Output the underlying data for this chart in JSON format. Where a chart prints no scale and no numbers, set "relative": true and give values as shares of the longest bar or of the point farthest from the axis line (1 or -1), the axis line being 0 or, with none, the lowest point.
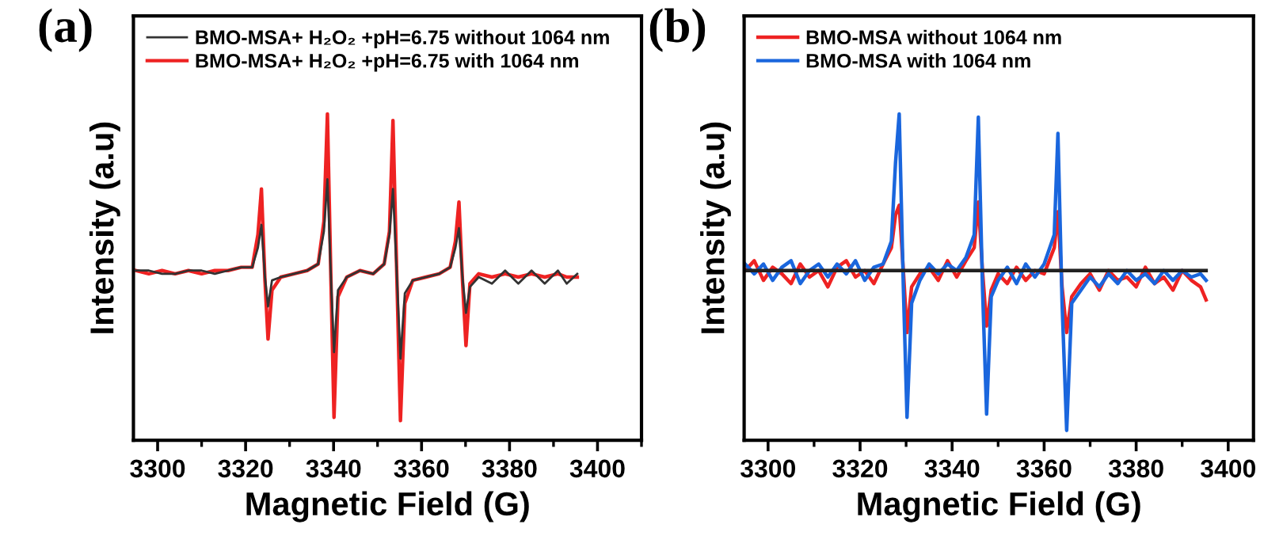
{
  "chart_data": [
    {
      "type": "line",
      "relative": true,
      "annotations": [
        "(a)"
      ],
      "xlabel": "Magnetic Field (G)",
      "ylabel": "Intensity (a.u)",
      "legend": "top left",
      "grid": false,
      "tick_labels": "x",
      "xlim": [
        3294.5,
        3410
      ],
      "xticks": [
        3300,
        {
          "value": 3310,
          "label": null
        },
        3320,
        {
          "value": 3330,
          "label": null
        },
        3340,
        {
          "value": 3350,
          "label": null
        },
        3360,
        {
          "value": 3370,
          "label": null
        },
        3380,
        {
          "value": 3390,
          "label": null
        },
        3400,
        {
          "value": 3410,
          "label": null
        }
      ],
      "x": [
        3295,
        3298,
        3301,
        3304,
        3307,
        3310,
        3313,
        3316,
        3319,
        3321.5,
        3322.8,
        3323.6,
        3324.4,
        3325.1,
        3326,
        3328,
        3331,
        3334,
        3336.5,
        3337.8,
        3338.6,
        3339.4,
        3340.1,
        3341,
        3343,
        3346,
        3349,
        3351.5,
        3352.7,
        3353.5,
        3354.4,
        3355.2,
        3356.2,
        3358,
        3361,
        3364,
        3366.5,
        3367.7,
        3368.5,
        3369.3,
        3370.1,
        3371,
        3373,
        3376,
        3379,
        3382,
        3385,
        3388,
        3391,
        3393,
        3395.4
      ],
      "series": [
        {
          "name": "BMO-MSA+ H₂O₂ +pH=6.75 without 1064 nm",
          "color": "#333333",
          "values": [
            0.52,
            0.52,
            0.51,
            0.51,
            0.52,
            0.52,
            0.51,
            0.52,
            0.53,
            0.53,
            0.59,
            0.66,
            0.5,
            0.41,
            0.49,
            0.5,
            0.51,
            0.52,
            0.54,
            0.64,
            0.8,
            0.5,
            0.27,
            0.46,
            0.5,
            0.52,
            0.51,
            0.54,
            0.63,
            0.77,
            0.5,
            0.25,
            0.45,
            0.49,
            0.5,
            0.51,
            0.53,
            0.59,
            0.65,
            0.5,
            0.39,
            0.47,
            0.5,
            0.48,
            0.52,
            0.48,
            0.52,
            0.48,
            0.52,
            0.48,
            0.51
          ]
        },
        {
          "name": "BMO-MSA+ H₂O₂ +pH=6.75 with 1064 nm",
          "color": "#ee2222",
          "values": [
            0.52,
            0.51,
            0.52,
            0.51,
            0.52,
            0.51,
            0.52,
            0.52,
            0.53,
            0.53,
            0.63,
            0.77,
            0.49,
            0.31,
            0.46,
            0.5,
            0.51,
            0.52,
            0.54,
            0.67,
            1.0,
            0.49,
            0.07,
            0.44,
            0.5,
            0.52,
            0.51,
            0.54,
            0.64,
            0.98,
            0.49,
            0.06,
            0.42,
            0.49,
            0.5,
            0.51,
            0.53,
            0.61,
            0.73,
            0.49,
            0.29,
            0.48,
            0.51,
            0.5,
            0.51,
            0.5,
            0.51,
            0.5,
            0.51,
            0.5,
            0.5
          ]
        }
      ]
    },
    {
      "type": "line",
      "relative": true,
      "annotations": [
        "(b)"
      ],
      "xlabel": "Magnetic Field (G)",
      "ylabel": "Intensity (a.u)",
      "legend": "top left",
      "grid": false,
      "tick_labels": "x",
      "xlim": [
        3294.8,
        3405.5
      ],
      "xticks": [
        3300,
        {
          "value": 3310,
          "label": null
        },
        3320,
        {
          "value": 3330,
          "label": null
        },
        3340,
        {
          "value": 3350,
          "label": null
        },
        3360,
        {
          "value": 3370,
          "label": null
        },
        3380,
        {
          "value": 3390,
          "label": null
        },
        3400
      ],
      "x": [
        3295,
        3297,
        3299,
        3301,
        3303,
        3305,
        3307,
        3309,
        3311,
        3313,
        3315,
        3317,
        3319,
        3321,
        3323,
        3325,
        3326.8,
        3327.7,
        3328.5,
        3329.4,
        3330.2,
        3331.2,
        3333,
        3335,
        3337,
        3339,
        3341,
        3343,
        3344.8,
        3345.7,
        3346.6,
        3347.5,
        3348.5,
        3350,
        3352,
        3354,
        3356,
        3358,
        3360,
        3362.2,
        3363,
        3363.9,
        3364.9,
        3366,
        3368,
        3370,
        3372,
        3374,
        3376,
        3378,
        3380,
        3382,
        3384,
        3386,
        3388,
        3390,
        3392,
        3394,
        3395.2
      ],
      "series": [
        {
          "name": "BMO-MSA without 1064 nm",
          "color": "#ee2222",
          "values": [
            0.52,
            0.55,
            0.49,
            0.53,
            0.51,
            0.48,
            0.54,
            0.5,
            0.52,
            0.47,
            0.53,
            0.55,
            0.5,
            0.52,
            0.48,
            0.54,
            0.59,
            0.69,
            0.72,
            0.52,
            0.33,
            0.47,
            0.51,
            0.53,
            0.49,
            0.55,
            0.5,
            0.55,
            0.59,
            0.73,
            0.52,
            0.35,
            0.46,
            0.51,
            0.48,
            0.53,
            0.49,
            0.52,
            0.51,
            0.59,
            0.7,
            0.47,
            0.33,
            0.44,
            0.48,
            0.51,
            0.46,
            0.52,
            0.49,
            0.5,
            0.47,
            0.53,
            0.48,
            0.5,
            0.46,
            0.52,
            0.49,
            0.47,
            0.43
          ]
        },
        {
          "name": "BMO-MSA with 1064 nm",
          "color": "#1a66dd",
          "values": [
            0.54,
            0.51,
            0.54,
            0.49,
            0.53,
            0.55,
            0.48,
            0.52,
            0.54,
            0.5,
            0.54,
            0.51,
            0.55,
            0.49,
            0.53,
            0.54,
            0.61,
            0.85,
            1.0,
            0.47,
            0.07,
            0.42,
            0.49,
            0.54,
            0.51,
            0.54,
            0.52,
            0.56,
            0.63,
            0.99,
            0.47,
            0.08,
            0.44,
            0.49,
            0.53,
            0.48,
            0.54,
            0.5,
            0.54,
            0.63,
            0.94,
            0.42,
            0.03,
            0.42,
            0.46,
            0.5,
            0.47,
            0.51,
            0.48,
            0.52,
            0.49,
            0.51,
            0.48,
            0.52,
            0.49,
            0.52,
            0.5,
            0.51,
            0.49
          ]
        },
        {
          "color": "#222222",
          "x": [
            3295,
            3395.2
          ],
          "values": [
            0.52,
            0.52
          ]
        }
      ]
    }
  ]
}
